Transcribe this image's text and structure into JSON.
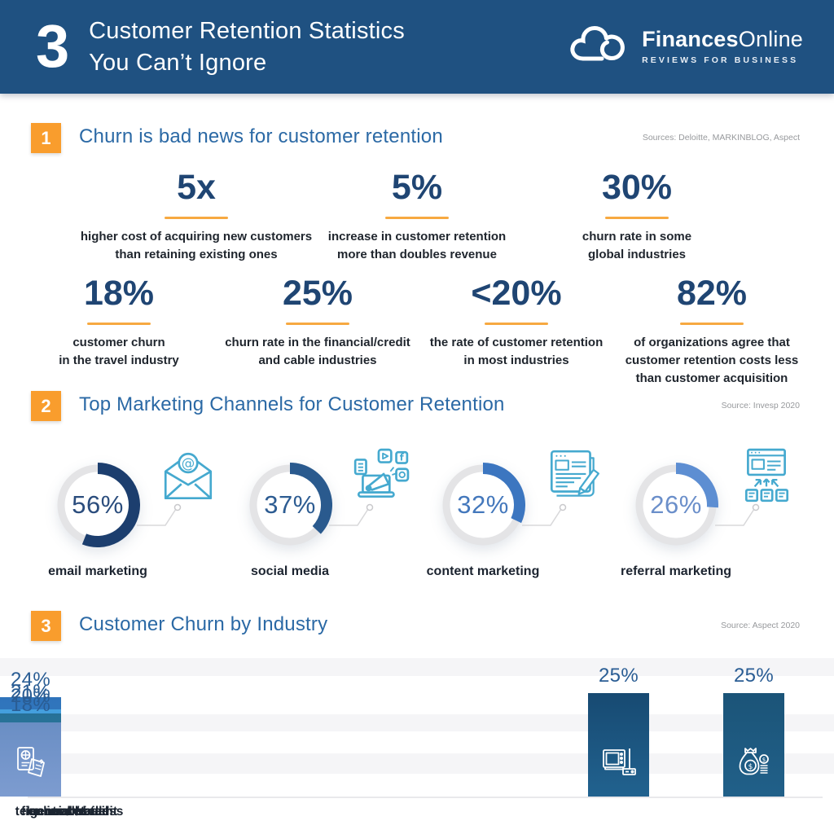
{
  "header": {
    "count": "3",
    "title_line1": "Customer Retention Statistics",
    "title_line2": "You Can’t Ignore",
    "brand_bold": "Finances",
    "brand_light": "Online",
    "brand_tagline": "REVIEWS FOR BUSINESS",
    "bg_color": "#1f5181",
    "accent_orange": "#f99d2d"
  },
  "section1": {
    "badge": "1",
    "title": "Churn is bad news for customer retention",
    "source": "Sources: Deloitte, MARKINBLOG, Aspect",
    "row1": [
      {
        "value": "5x",
        "caption": [
          "higher cost of acquiring new customers",
          "than retaining existing ones"
        ]
      },
      {
        "value": "5%",
        "caption": [
          "increase in customer retention",
          "more than doubles revenue"
        ]
      },
      {
        "value": "30%",
        "caption": [
          "churn rate in some",
          "global industries"
        ]
      }
    ],
    "row2": [
      {
        "value": "18%",
        "caption": [
          "customer churn",
          "in the travel industry"
        ]
      },
      {
        "value": "25%",
        "caption": [
          "churn rate in the financial/credit",
          "and cable industries"
        ]
      },
      {
        "value": "<20%",
        "caption": [
          "the rate of customer retention",
          "in most industries"
        ]
      },
      {
        "value": "82%",
        "caption": [
          "of organizations agree that",
          "customer retention costs less",
          "than customer acquisition"
        ]
      }
    ]
  },
  "section2": {
    "badge": "2",
    "title": "Top Marketing Channels for Customer Retention",
    "source": "Source: Invesp 2020"
  },
  "section3": {
    "badge": "3",
    "title": "Customer Churn by Industry",
    "source": "Source: Aspect 2020"
  },
  "chart_data": [
    {
      "type": "pie",
      "subtype": "donut-set",
      "title": "Top Marketing Channels for Customer Retention",
      "source": "Source: Invesp 2020",
      "items": [
        {
          "label": "email marketing",
          "value": 56,
          "value_label": "56%",
          "arc_color": "#1c3e6e",
          "number_color": "#2b4d7d",
          "ring_color": "#e4e4e6",
          "icon": "email-marketing-icon"
        },
        {
          "label": "social media",
          "value": 37,
          "value_label": "37%",
          "arc_color": "#2a5a8e",
          "number_color": "#2d5c92",
          "ring_color": "#e4e4e6",
          "icon": "social-media-icon"
        },
        {
          "label": "content marketing",
          "value": 32,
          "value_label": "32%",
          "arc_color": "#3c76c0",
          "number_color": "#4478bc",
          "ring_color": "#e4e4e6",
          "icon": "content-marketing-icon"
        },
        {
          "label": "referral marketing",
          "value": 26,
          "value_label": "26%",
          "arc_color": "#5d8ed2",
          "number_color": "#6b8fca",
          "ring_color": "#e4e4e6",
          "icon": "referral-marketing-icon"
        }
      ]
    },
    {
      "type": "bar",
      "title": "Customer Churn by Industry",
      "source": "Source: Aspect 2020",
      "categories": [
        "cable",
        "financial / credit",
        "general retail",
        "online retailer",
        "telecom / wireless",
        "travel"
      ],
      "values": [
        25,
        25,
        24,
        21,
        20,
        18
      ],
      "value_labels": [
        "25%",
        "25%",
        "24%",
        "21%",
        "20%",
        "18%"
      ],
      "unit": "%",
      "ylim": [
        0,
        27
      ],
      "grid": "horizontal-bands",
      "bar_colors_top": [
        "#174a72",
        "#1b5478",
        "#2f74bb",
        "#44a0de",
        "#277197",
        "#6a8ec4"
      ],
      "bar_colors_bottom": [
        "#21628f",
        "#216089",
        "#3a80c6",
        "#2e7cc2",
        "#2d7ba4",
        "#7d9cd0"
      ],
      "icons": [
        "cable-tv-icon",
        "money-bag-icon",
        "shopping-bags-icon",
        "online-store-icon",
        "smartphone-icon",
        "travel-documents-icon"
      ]
    }
  ]
}
